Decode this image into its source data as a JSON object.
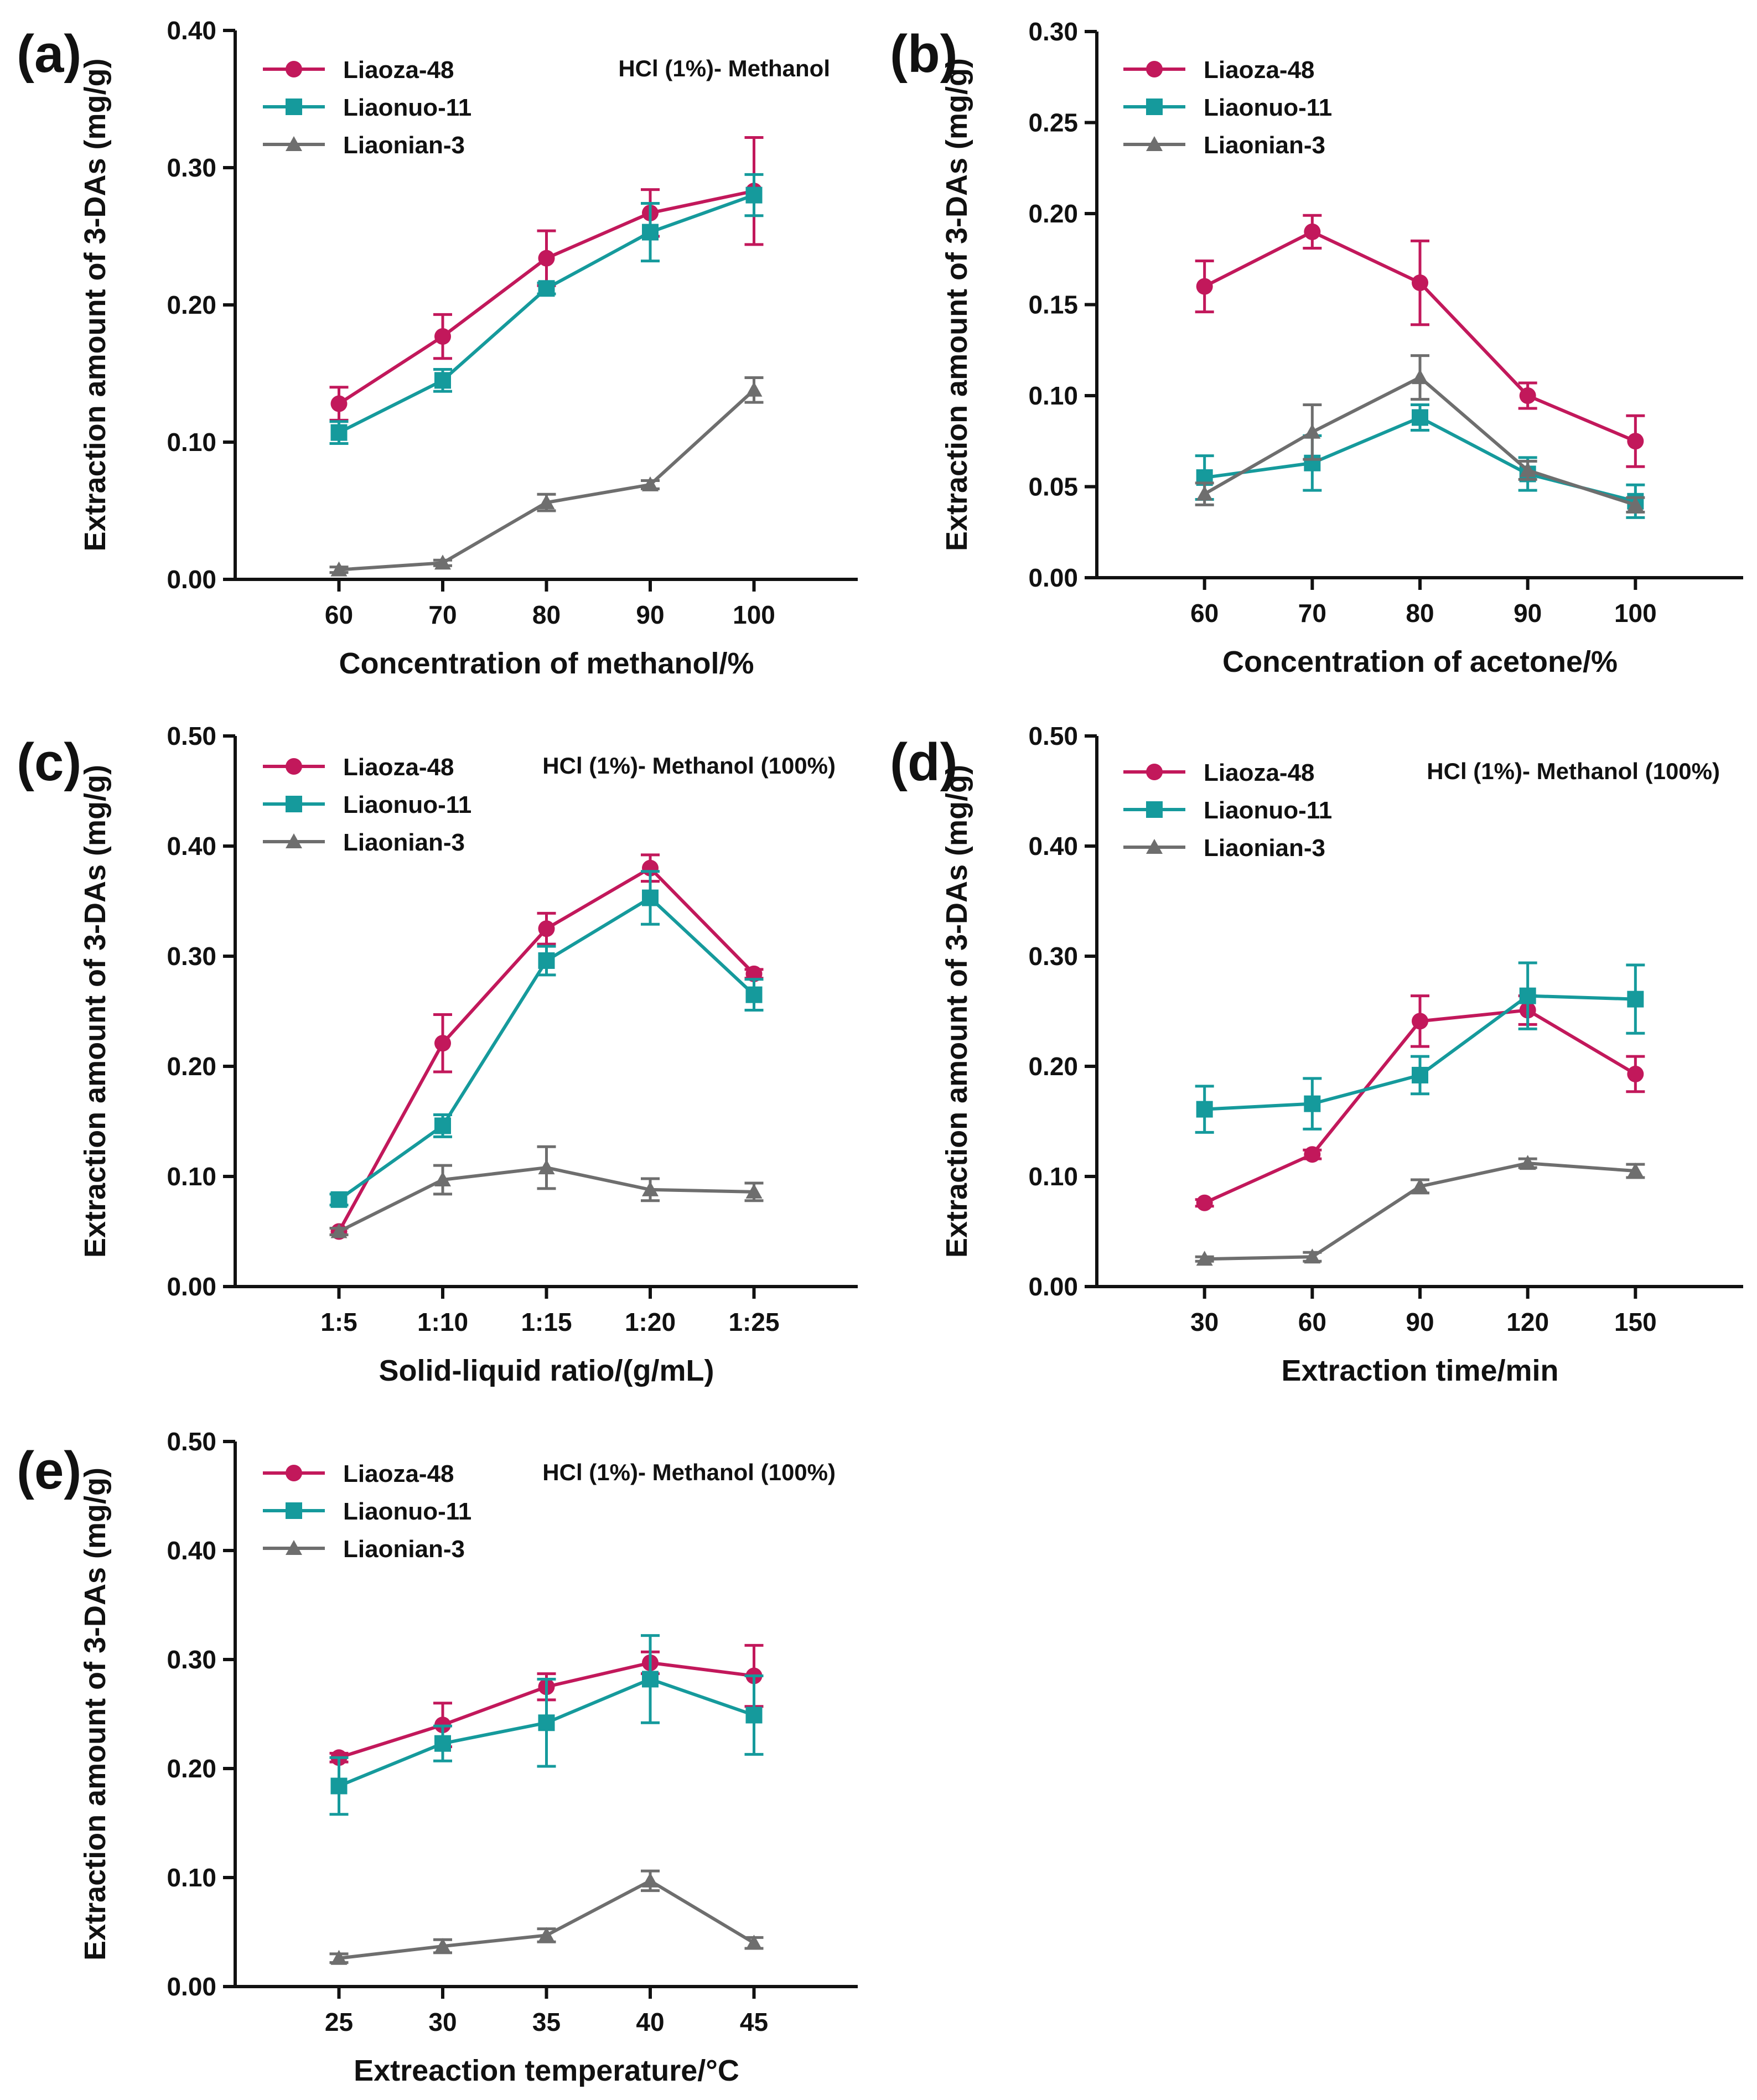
{
  "chart_data": [
    {
      "type": "line",
      "panel_label": "(a)",
      "xlabel": "Concentration of methanol/%",
      "ylabel": "Extraction amount of 3-DAs (mg/g)",
      "categories": [
        "60",
        "70",
        "80",
        "90",
        "100"
      ],
      "ylim": [
        0,
        0.4
      ],
      "yticks": [
        "0.00",
        "0.10",
        "0.20",
        "0.30",
        "0.40"
      ],
      "annotation": "HCl (1%)- Methanol",
      "legend_position": "top-left",
      "series": [
        {
          "name": "Liaoza-48",
          "values": [
            0.128,
            0.177,
            0.234,
            0.267,
            0.283
          ],
          "errors": [
            0.012,
            0.016,
            0.02,
            0.017,
            0.039
          ]
        },
        {
          "name": "Liaonuo-11",
          "values": [
            0.107,
            0.145,
            0.212,
            0.253,
            0.28
          ],
          "errors": [
            0.008,
            0.008,
            0.004,
            0.021,
            0.015
          ]
        },
        {
          "name": "Liaonian-3",
          "values": [
            0.007,
            0.012,
            0.056,
            0.069,
            0.138
          ],
          "errors": [
            0.002,
            0.002,
            0.006,
            0.003,
            0.009
          ]
        }
      ]
    },
    {
      "type": "line",
      "panel_label": "(b)",
      "xlabel": "Concentration of acetone/%",
      "ylabel": "Extraction amount of 3-DAs (mg/g)",
      "categories": [
        "60",
        "70",
        "80",
        "90",
        "100"
      ],
      "ylim": [
        0,
        0.3
      ],
      "yticks": [
        "0.00",
        "0.05",
        "0.10",
        "0.15",
        "0.20",
        "0.25",
        "0.30"
      ],
      "annotation": "",
      "legend_position": "top-left",
      "series": [
        {
          "name": "Liaoza-48",
          "values": [
            0.16,
            0.19,
            0.162,
            0.1,
            0.075
          ],
          "errors": [
            0.014,
            0.009,
            0.023,
            0.007,
            0.014
          ]
        },
        {
          "name": "Liaonuo-11",
          "values": [
            0.055,
            0.063,
            0.088,
            0.057,
            0.042
          ],
          "errors": [
            0.012,
            0.015,
            0.007,
            0.009,
            0.009
          ]
        },
        {
          "name": "Liaonian-3",
          "values": [
            0.046,
            0.08,
            0.11,
            0.059,
            0.04
          ],
          "errors": [
            0.006,
            0.015,
            0.012,
            0.005,
            0.004
          ]
        }
      ]
    },
    {
      "type": "line",
      "panel_label": "(c)",
      "xlabel": "Solid-liquid ratio/(g/mL)",
      "ylabel": "Extraction amount of 3-DAs (mg/g)",
      "categories": [
        "1:5",
        "1:10",
        "1:15",
        "1:20",
        "1:25"
      ],
      "ylim": [
        0,
        0.5
      ],
      "yticks": [
        "0.00",
        "0.10",
        "0.20",
        "0.30",
        "0.40",
        "0.50"
      ],
      "annotation": "HCl (1%)- Methanol (100%)",
      "legend_position": "top-left",
      "series": [
        {
          "name": "Liaoza-48",
          "values": [
            0.05,
            0.221,
            0.325,
            0.38,
            0.284
          ],
          "errors": [
            0.003,
            0.026,
            0.014,
            0.012,
            0.004
          ]
        },
        {
          "name": "Liaonuo-11",
          "values": [
            0.079,
            0.146,
            0.296,
            0.353,
            0.265
          ],
          "errors": [
            0.005,
            0.01,
            0.013,
            0.024,
            0.014
          ]
        },
        {
          "name": "Liaonian-3",
          "values": [
            0.05,
            0.097,
            0.108,
            0.088,
            0.086
          ],
          "errors": [
            0.003,
            0.013,
            0.019,
            0.01,
            0.008
          ]
        }
      ]
    },
    {
      "type": "line",
      "panel_label": "(d)",
      "xlabel": "Extraction time/min",
      "ylabel": "Extraction amount of 3-DAs (mg/g)",
      "categories": [
        "30",
        "60",
        "90",
        "120",
        "150"
      ],
      "ylim": [
        0,
        0.5
      ],
      "yticks": [
        "0.00",
        "0.10",
        "0.20",
        "0.30",
        "0.40",
        "0.50"
      ],
      "annotation": "HCl (1%)- Methanol (100%)",
      "legend_position": "top-left",
      "series": [
        {
          "name": "Liaoza-48",
          "values": [
            0.076,
            0.12,
            0.241,
            0.251,
            0.193
          ],
          "errors": [
            0.003,
            0.004,
            0.023,
            0.013,
            0.016
          ]
        },
        {
          "name": "Liaonuo-11",
          "values": [
            0.161,
            0.166,
            0.192,
            0.264,
            0.261
          ],
          "errors": [
            0.021,
            0.023,
            0.017,
            0.03,
            0.031
          ]
        },
        {
          "name": "Liaonian-3",
          "values": [
            0.025,
            0.027,
            0.091,
            0.112,
            0.105
          ],
          "errors": [
            0.002,
            0.004,
            0.006,
            0.004,
            0.006
          ]
        }
      ]
    },
    {
      "type": "line",
      "panel_label": "(e)",
      "xlabel": "Extreaction temperature/°C",
      "ylabel": "Extraction amount of 3-DAs (mg/g)",
      "categories": [
        "25",
        "30",
        "35",
        "40",
        "45"
      ],
      "ylim": [
        0,
        0.5
      ],
      "yticks": [
        "0.00",
        "0.10",
        "0.20",
        "0.30",
        "0.40",
        "0.50"
      ],
      "annotation": "HCl (1%)- Methanol (100%)",
      "legend_position": "top-left",
      "series": [
        {
          "name": "Liaoza-48",
          "values": [
            0.21,
            0.24,
            0.275,
            0.297,
            0.285
          ],
          "errors": [
            0.004,
            0.02,
            0.012,
            0.01,
            0.028
          ]
        },
        {
          "name": "Liaonuo-11",
          "values": [
            0.184,
            0.223,
            0.242,
            0.282,
            0.249
          ],
          "errors": [
            0.026,
            0.016,
            0.04,
            0.04,
            0.036
          ]
        },
        {
          "name": "Liaonian-3",
          "values": [
            0.026,
            0.037,
            0.047,
            0.097,
            0.04
          ],
          "errors": [
            0.004,
            0.006,
            0.006,
            0.009,
            0.005
          ]
        }
      ]
    }
  ],
  "colors": {
    "Liaoza-48": "#c2185b",
    "Liaonuo-11": "#159a9c",
    "Liaonian-3": "#6e6e6e"
  },
  "markers": {
    "Liaoza-48": "circle",
    "Liaonuo-11": "square",
    "Liaonian-3": "triangle"
  }
}
